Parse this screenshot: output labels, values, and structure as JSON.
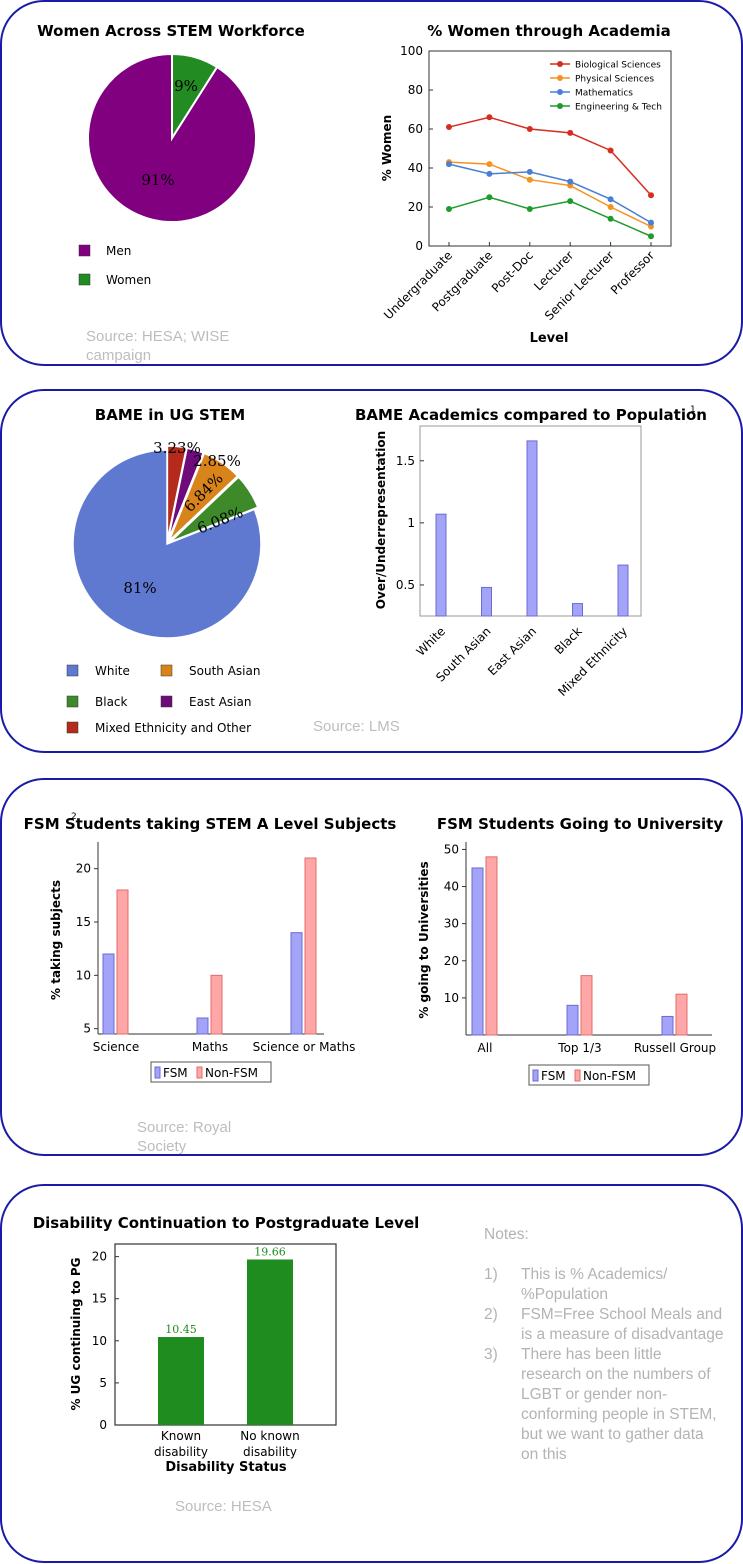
{
  "panels": {
    "women_source": "Source: HESA; WISE campaign",
    "bame_source": "Source: LMS",
    "fsm_source": "Source: Royal Society",
    "disability_source": "Source: HESA"
  },
  "notes": {
    "heading": "Notes:",
    "items": [
      {
        "num": "1)",
        "text": "This is % Academics/ %Population"
      },
      {
        "num": "2)",
        "text": "FSM=Free School Meals and is a measure of disadvantage"
      },
      {
        "num": "3)",
        "text": "There has been little research on the numbers of LGBT or gender non-conforming people in STEM, but we want to gather data on this"
      }
    ]
  },
  "chart_data": [
    {
      "type": "pie",
      "title": "Women Across STEM Workforce",
      "labels": [
        "Men",
        "Women"
      ],
      "values": [
        91,
        9
      ],
      "value_labels": [
        "91%",
        "9%"
      ],
      "colors": [
        "#800080",
        "#228b22"
      ],
      "legend": "bottom-left"
    },
    {
      "type": "line",
      "title": "% Women through Academia",
      "xlabel": "Level",
      "ylabel": "% Women",
      "categories": [
        "Undergraduate",
        "Postgraduate",
        "Post-Doc",
        "Lecturer",
        "Senior Lecturer",
        "Professor"
      ],
      "ylim": [
        0,
        100
      ],
      "yticks": [
        0,
        20,
        40,
        60,
        80,
        100
      ],
      "legend": "top-right",
      "series": [
        {
          "name": "Biological Sciences",
          "color": "#d62d20",
          "values": [
            61,
            66,
            60,
            58,
            49,
            26
          ]
        },
        {
          "name": "Physical Sciences",
          "color": "#f5921e",
          "values": [
            43,
            42,
            34,
            31,
            20,
            10
          ]
        },
        {
          "name": "Mathematics",
          "color": "#4a7fd6",
          "values": [
            42,
            37,
            38,
            33,
            24,
            12
          ]
        },
        {
          "name": "Engineering & Tech",
          "color": "#1f9b2e",
          "values": [
            19,
            25,
            19,
            23,
            14,
            5
          ]
        }
      ]
    },
    {
      "type": "pie",
      "title": "BAME in UG STEM",
      "labels": [
        "White",
        "Black",
        "Mixed Ethnicity and Other",
        "South Asian",
        "East Asian"
      ],
      "values": [
        81,
        6.08,
        3.23,
        6.84,
        2.85
      ],
      "value_labels": [
        "81%",
        "6.08%",
        "3.23%",
        "6.84%",
        "2.85%"
      ],
      "colors": [
        "#5f79d1",
        "#3e8a2a",
        "#b42b1c",
        "#d9841a",
        "#6e0a7a"
      ],
      "legend": "bottom"
    },
    {
      "type": "bar",
      "title": "BAME Academics compared to Population",
      "title_note": "1",
      "ylabel": "Over/Underrepresentation",
      "categories": [
        "White",
        "South Asian",
        "East Asian",
        "Black",
        "Mixed Ethnicity"
      ],
      "values": [
        1.07,
        0.48,
        1.66,
        0.35,
        0.66
      ],
      "ylim": [
        0.25,
        1.78
      ],
      "yticks": [
        0.5,
        1,
        1.5
      ],
      "ytick_labels": [
        "0.5",
        "1",
        "1.5"
      ],
      "grid": false
    },
    {
      "type": "bar",
      "title": "FSM Students taking STEM A Level Subjects",
      "title_note": "2",
      "ylabel": "% taking subjects",
      "categories": [
        "Science",
        "Maths",
        "Science or Maths"
      ],
      "series": [
        {
          "name": "FSM",
          "values": [
            12,
            6,
            14
          ]
        },
        {
          "name": "Non-FSM",
          "values": [
            18,
            10,
            21
          ]
        }
      ],
      "ylim": [
        4.5,
        22.5
      ],
      "yticks": [
        5,
        10,
        15,
        20
      ],
      "legend": "bottom"
    },
    {
      "type": "bar",
      "title": "FSM Students Going to University",
      "ylabel": "% going to Universities",
      "categories": [
        "All",
        "Top 1/3",
        "Russell Group"
      ],
      "series": [
        {
          "name": "FSM",
          "values": [
            45,
            8,
            5
          ]
        },
        {
          "name": "Non-FSM",
          "values": [
            48,
            16,
            11
          ]
        }
      ],
      "ylim": [
        0,
        52
      ],
      "yticks": [
        10,
        20,
        30,
        40,
        50
      ],
      "legend": "bottom"
    },
    {
      "type": "bar",
      "title": "Disability Continuation to Postgraduate Level",
      "xlabel": "Disability Status",
      "ylabel": "% UG continuing to PG",
      "categories": [
        "Known disability",
        "No known disability"
      ],
      "values": [
        10.45,
        19.66
      ],
      "value_labels": [
        "10.45",
        "19.66"
      ],
      "ylim": [
        0,
        21.5
      ],
      "yticks": [
        0,
        5,
        10,
        15,
        20
      ],
      "color": "#1f8c1f"
    }
  ]
}
